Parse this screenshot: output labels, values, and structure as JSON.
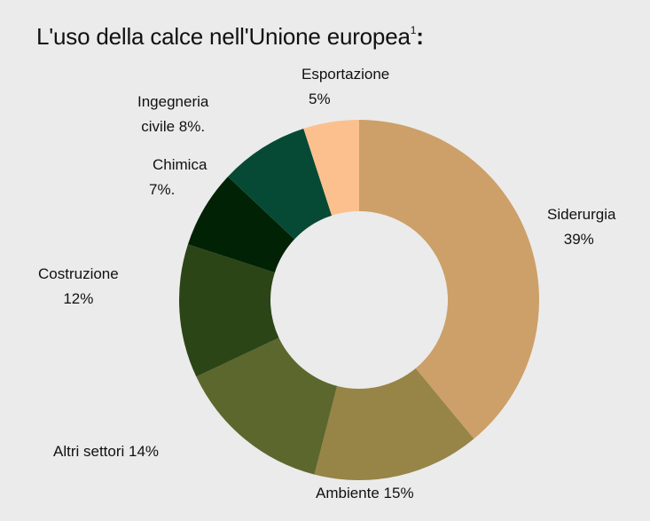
{
  "title": {
    "text": "L'uso della calce nell'Unione europea",
    "superscript": "1",
    "suffix": ":"
  },
  "labels": {
    "siderurgia": {
      "line1": "Siderurgia",
      "line2": "39%"
    },
    "ambiente": {
      "line1": "Ambiente 15%"
    },
    "altri_settori": {
      "line1": "Altri settori 14%"
    },
    "costruzione": {
      "line1": "Costruzione",
      "line2": "12%"
    },
    "chimica": {
      "line1": "Chimica",
      "line2": "7%."
    },
    "ingegneria_civile": {
      "line1": "Ingegneria",
      "line2": "civile 8%."
    },
    "esportazione": {
      "line1": "Esportazione",
      "line2": "5%"
    }
  },
  "chart_data": {
    "type": "pie",
    "variant": "donut",
    "title": "L'uso della calce nell'Unione europea¹:",
    "categories": [
      "Siderurgia",
      "Ambiente",
      "Altri settori",
      "Costruzione",
      "Chimica",
      "Ingegneria civile",
      "Esportazione"
    ],
    "values": [
      39,
      15,
      14,
      12,
      7,
      8,
      5
    ],
    "unit": "%",
    "colors": [
      "#cca068",
      "#978447",
      "#5c672d",
      "#2b4517",
      "#012205",
      "#064a35",
      "#fcc08e"
    ],
    "start_angle": "12 o'clock",
    "direction": "clockwise",
    "legend": "none (direct labels)",
    "grid": false
  }
}
